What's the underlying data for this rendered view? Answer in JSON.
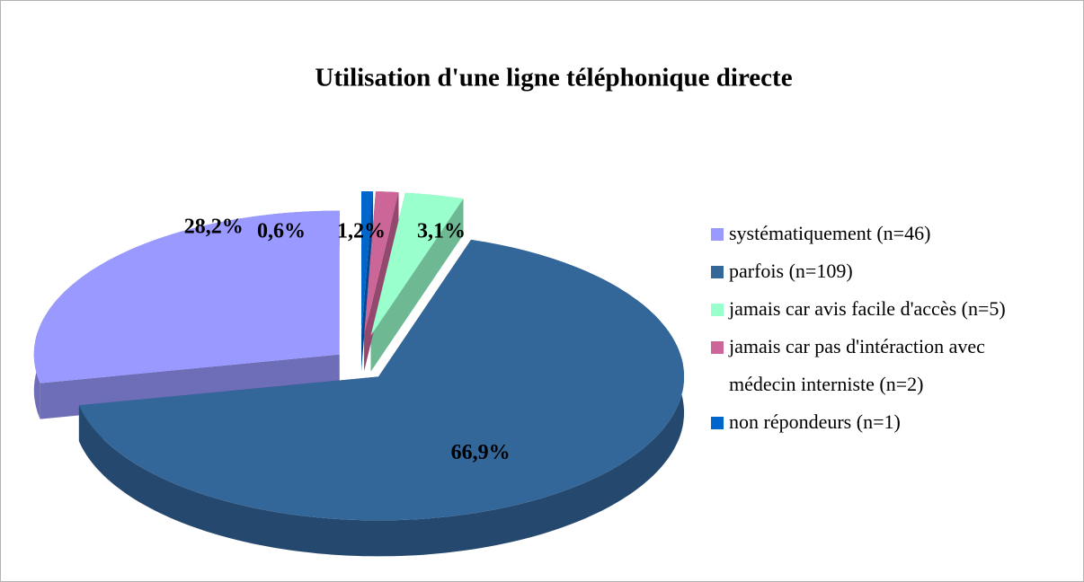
{
  "chart_data": {
    "type": "pie3d",
    "title": "Utilisation d'une ligne téléphonique directe",
    "categories": [
      "systématiquement (n=46)",
      "parfois  (n=109)",
      "jamais car avis facile d'accès (n=5)",
      "jamais car pas d'intéraction avec médecin interniste (n=2)",
      "non répondeurs  (n=1)"
    ],
    "values": [
      28.2,
      66.9,
      3.1,
      1.2,
      0.6
    ],
    "value_labels": [
      "28,2%",
      "66,9%",
      "3,1%",
      "1,2%",
      "0,6%"
    ],
    "colors": [
      "#9999ff",
      "#336699",
      "#99ffcc",
      "#cc6699",
      "#0066cc"
    ],
    "legend": "right"
  }
}
